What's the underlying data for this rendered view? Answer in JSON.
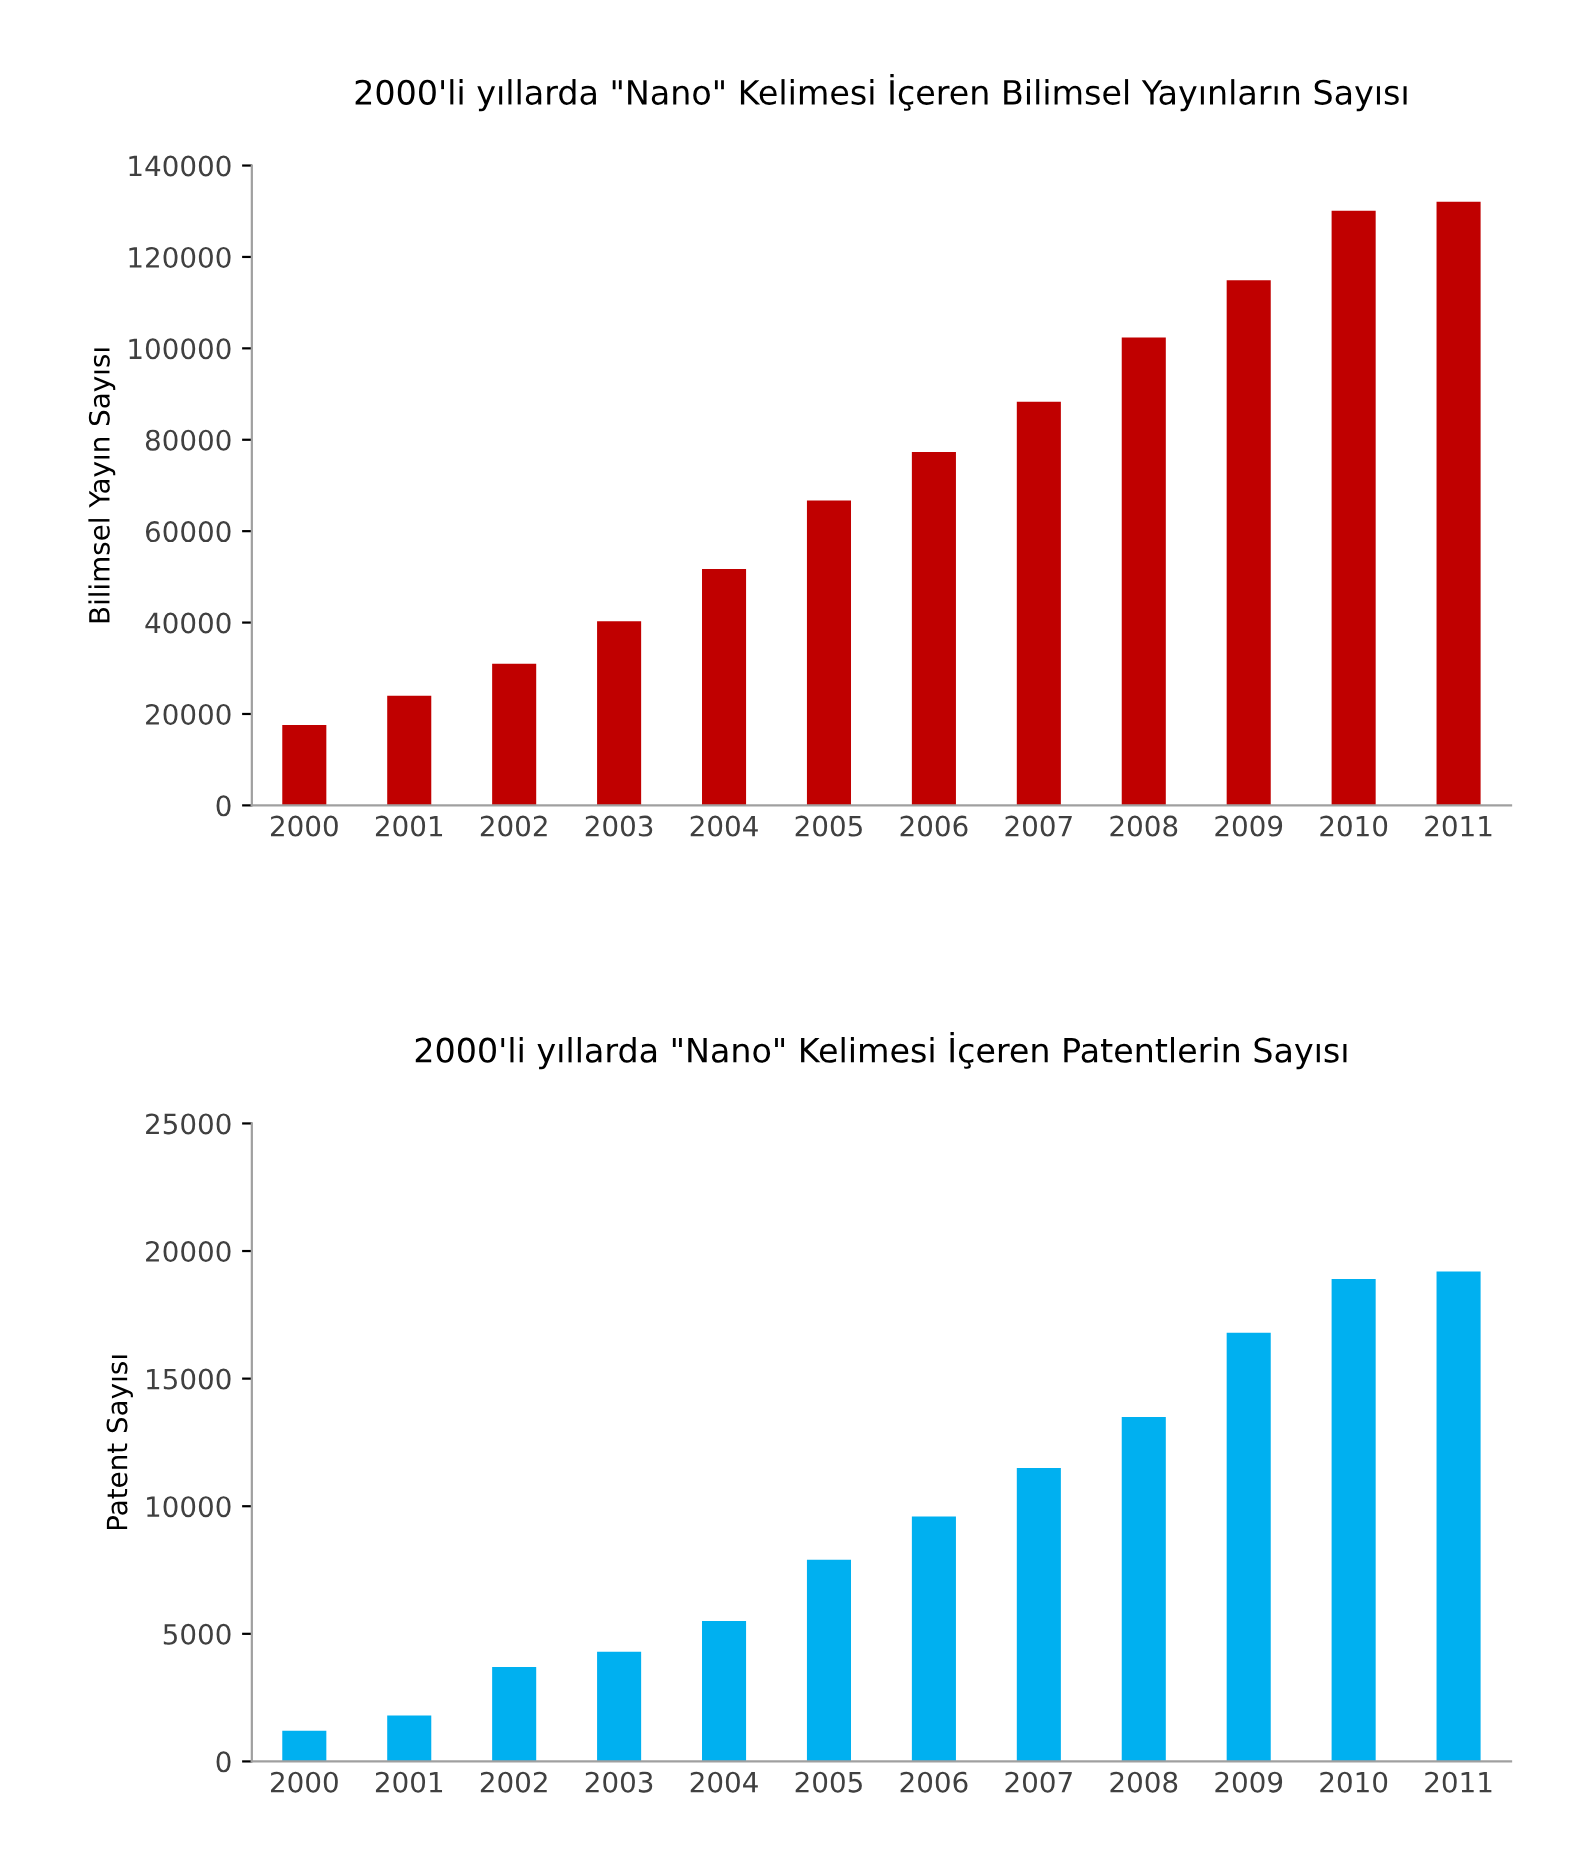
{
  "chart_data": [
    {
      "type": "bar",
      "title": "2000'li yıllarda \"Nano\" Kelimesi İçeren Bilimsel Yayınların Sayısı",
      "ylabel": "Bilimsel Yayın Sayısı",
      "categories": [
        "2000",
        "2001",
        "2002",
        "2003",
        "2004",
        "2005",
        "2006",
        "2007",
        "2008",
        "2009",
        "2010",
        "2011"
      ],
      "series": [
        {
          "color": "#c00000",
          "values": [
            17600,
            24000,
            31000,
            40300,
            51700,
            66700,
            77300,
            88300,
            102400,
            114900,
            130100,
            132100
          ]
        }
      ],
      "ylim": [
        0,
        140000
      ],
      "yticks": [
        0,
        20000,
        40000,
        60000,
        80000,
        100000,
        120000,
        140000
      ],
      "grid": false,
      "legend": false
    },
    {
      "type": "bar",
      "title": "2000'li yıllarda \"Nano\" Kelimesi İçeren Patentlerin Sayısı",
      "ylabel": "Patent Sayısı",
      "categories": [
        "2000",
        "2001",
        "2002",
        "2003",
        "2004",
        "2005",
        "2006",
        "2007",
        "2008",
        "2009",
        "2010",
        "2011"
      ],
      "series": [
        {
          "color": "#00b0f0",
          "values": [
            1200,
            1800,
            3700,
            4300,
            5500,
            7900,
            9600,
            11500,
            13500,
            16800,
            18900,
            19200
          ]
        }
      ],
      "ylim": [
        0,
        25000
      ],
      "yticks": [
        0,
        5000,
        10000,
        15000,
        20000,
        25000
      ],
      "grid": false,
      "legend": false
    }
  ]
}
